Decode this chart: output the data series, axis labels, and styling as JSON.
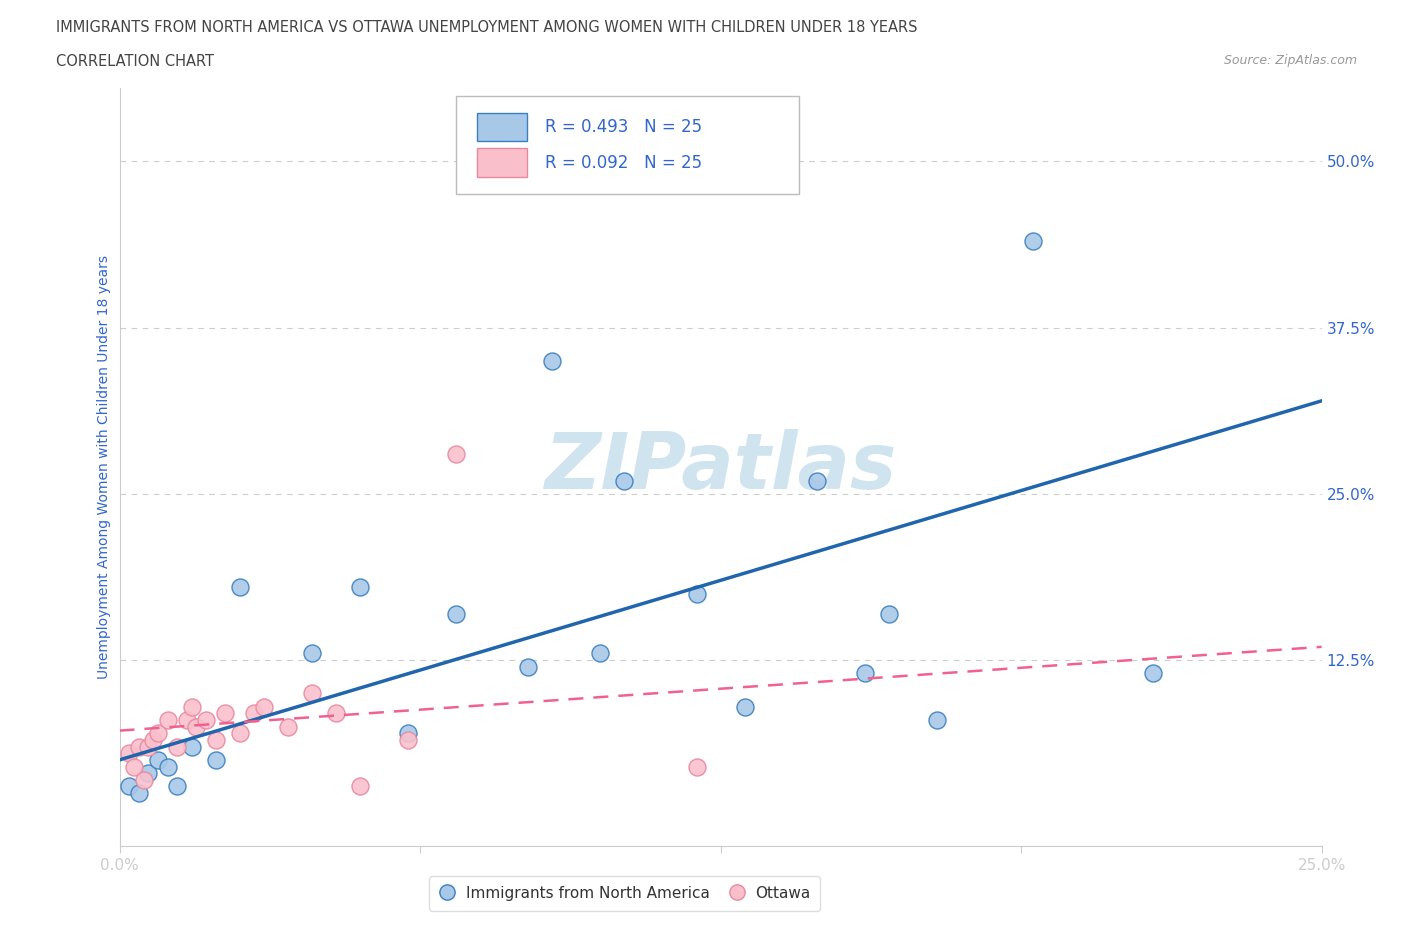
{
  "title_line1": "IMMIGRANTS FROM NORTH AMERICA VS OTTAWA UNEMPLOYMENT AMONG WOMEN WITH CHILDREN UNDER 18 YEARS",
  "title_line2": "CORRELATION CHART",
  "source": "Source: ZipAtlas.com",
  "ylabel": "Unemployment Among Women with Children Under 18 years",
  "blue_x": [
    0.002,
    0.004,
    0.006,
    0.008,
    0.01,
    0.012,
    0.015,
    0.02,
    0.025,
    0.04,
    0.05,
    0.06,
    0.07,
    0.085,
    0.09,
    0.1,
    0.105,
    0.12,
    0.13,
    0.145,
    0.155,
    0.16,
    0.17,
    0.19,
    0.215
  ],
  "blue_y": [
    0.03,
    0.025,
    0.04,
    0.05,
    0.045,
    0.03,
    0.06,
    0.05,
    0.18,
    0.13,
    0.18,
    0.07,
    0.16,
    0.12,
    0.35,
    0.13,
    0.26,
    0.175,
    0.09,
    0.26,
    0.115,
    0.16,
    0.08,
    0.44,
    0.115
  ],
  "pink_x": [
    0.002,
    0.003,
    0.004,
    0.005,
    0.006,
    0.007,
    0.008,
    0.01,
    0.012,
    0.014,
    0.015,
    0.016,
    0.018,
    0.02,
    0.022,
    0.025,
    0.028,
    0.03,
    0.035,
    0.04,
    0.045,
    0.05,
    0.06,
    0.07,
    0.12
  ],
  "pink_y": [
    0.055,
    0.045,
    0.06,
    0.035,
    0.06,
    0.065,
    0.07,
    0.08,
    0.06,
    0.08,
    0.09,
    0.075,
    0.08,
    0.065,
    0.085,
    0.07,
    0.085,
    0.09,
    0.075,
    0.1,
    0.085,
    0.03,
    0.065,
    0.28,
    0.045
  ],
  "blue_fill": "#A8C8E8",
  "blue_edge": "#3A7FC1",
  "pink_fill": "#F9C0CC",
  "pink_edge": "#E888A0",
  "blue_line_color": "#2166AC",
  "pink_line_color": "#F06090",
  "R_blue": 0.493,
  "N_blue": 25,
  "R_pink": 0.092,
  "N_pink": 25,
  "watermark": "ZIPatlas",
  "watermark_color": "#D0E4F0",
  "legend_label_blue": "Immigrants from North America",
  "legend_label_pink": "Ottawa",
  "bg_color": "#FFFFFF",
  "grid_color": "#CCCCCC",
  "title_color": "#444444",
  "axis_color": "#3366CC",
  "source_color": "#999999",
  "xmin": 0.0,
  "xmax": 0.25,
  "ymin": -0.015,
  "ymax": 0.555
}
